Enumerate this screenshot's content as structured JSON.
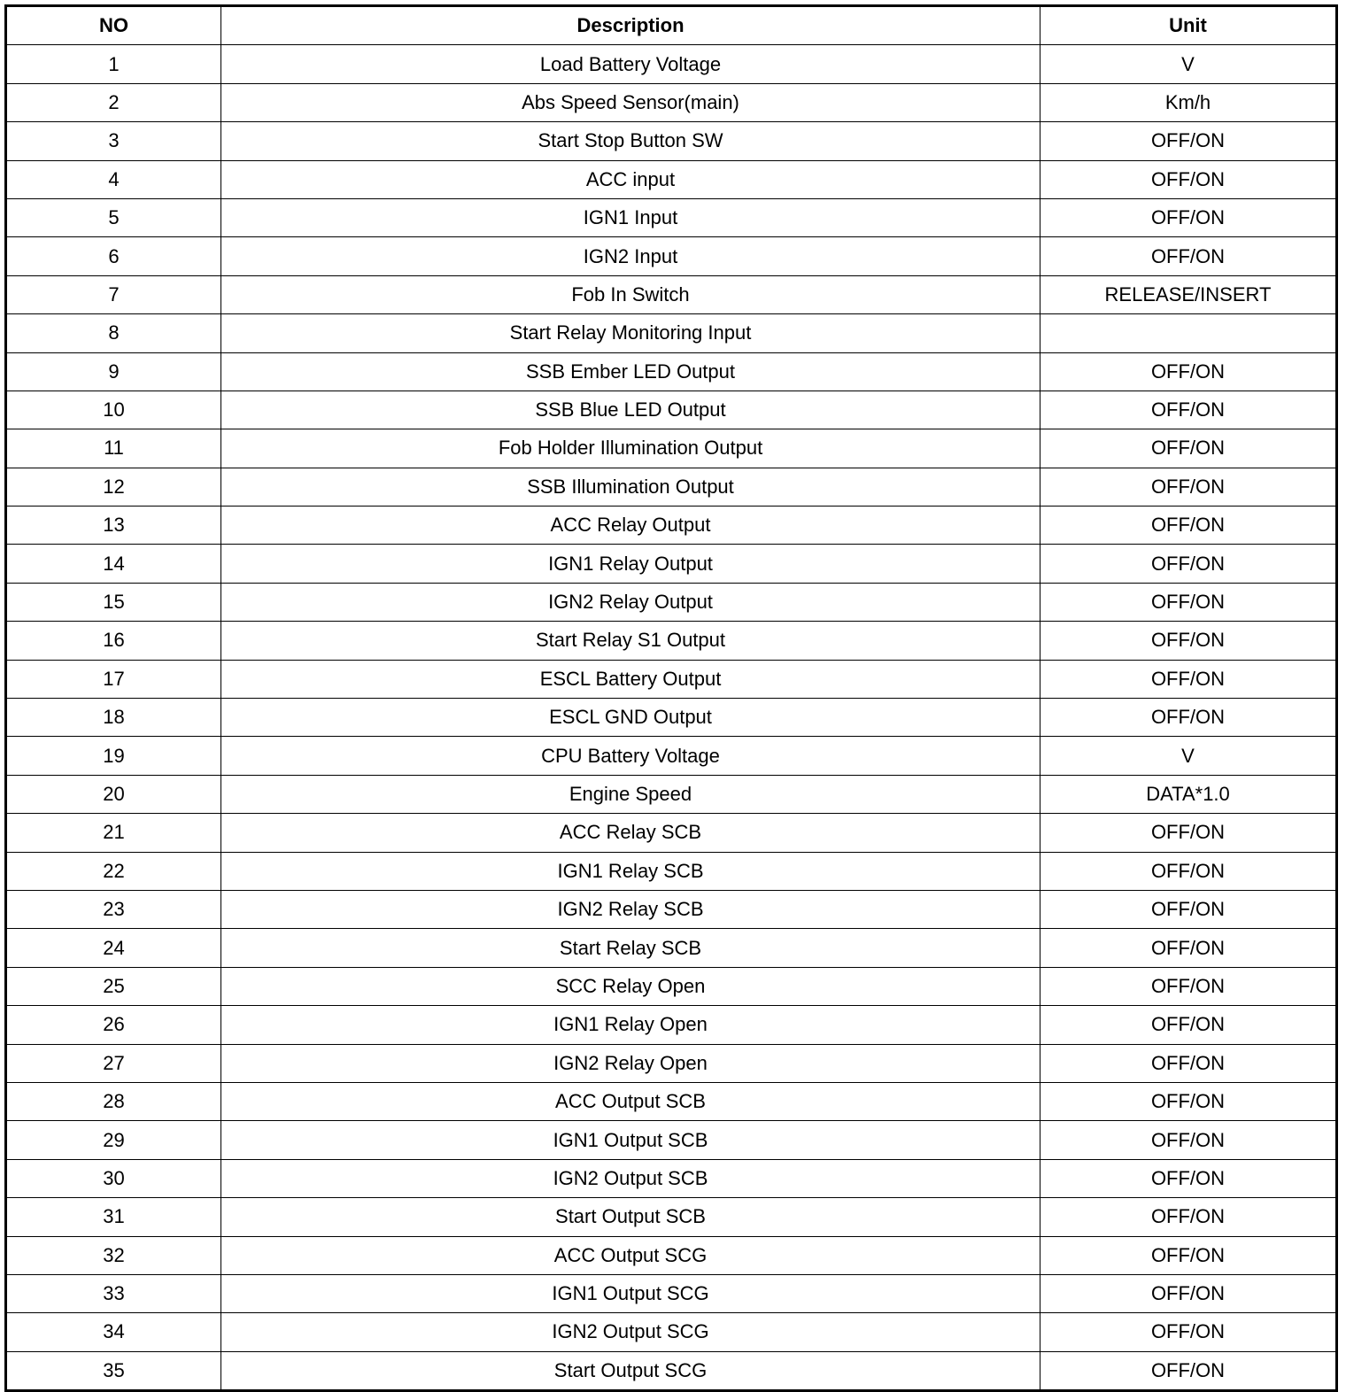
{
  "table": {
    "headers": [
      "NO",
      "Description",
      "Unit"
    ],
    "rows": [
      [
        "1",
        "Load Battery Voltage",
        "V"
      ],
      [
        "2",
        "Abs Speed Sensor(main)",
        "Km/h"
      ],
      [
        "3",
        "Start Stop Button SW",
        "OFF/ON"
      ],
      [
        "4",
        "ACC input",
        "OFF/ON"
      ],
      [
        "5",
        "IGN1 Input",
        "OFF/ON"
      ],
      [
        "6",
        "IGN2 Input",
        "OFF/ON"
      ],
      [
        "7",
        "Fob In Switch",
        "RELEASE/INSERT"
      ],
      [
        "8",
        "Start Relay Monitoring Input",
        ""
      ],
      [
        "9",
        "SSB Ember LED Output",
        "OFF/ON"
      ],
      [
        "10",
        "SSB Blue LED Output",
        "OFF/ON"
      ],
      [
        "11",
        "Fob Holder Illumination Output",
        "OFF/ON"
      ],
      [
        "12",
        "SSB Illumination Output",
        "OFF/ON"
      ],
      [
        "13",
        "ACC Relay Output",
        "OFF/ON"
      ],
      [
        "14",
        "IGN1 Relay Output",
        "OFF/ON"
      ],
      [
        "15",
        "IGN2 Relay Output",
        "OFF/ON"
      ],
      [
        "16",
        "Start Relay S1 Output",
        "OFF/ON"
      ],
      [
        "17",
        "ESCL Battery Output",
        "OFF/ON"
      ],
      [
        "18",
        "ESCL GND Output",
        "OFF/ON"
      ],
      [
        "19",
        "CPU Battery Voltage",
        "V"
      ],
      [
        "20",
        "Engine Speed",
        "DATA*1.0"
      ],
      [
        "21",
        "ACC Relay SCB",
        "OFF/ON"
      ],
      [
        "22",
        "IGN1 Relay SCB",
        "OFF/ON"
      ],
      [
        "23",
        "IGN2 Relay SCB",
        "OFF/ON"
      ],
      [
        "24",
        "Start Relay SCB",
        "OFF/ON"
      ],
      [
        "25",
        "SCC Relay Open",
        "OFF/ON"
      ],
      [
        "26",
        "IGN1 Relay Open",
        "OFF/ON"
      ],
      [
        "27",
        "IGN2 Relay Open",
        "OFF/ON"
      ],
      [
        "28",
        "ACC Output SCB",
        "OFF/ON"
      ],
      [
        "29",
        "IGN1 Output SCB",
        "OFF/ON"
      ],
      [
        "30",
        "IGN2 Output SCB",
        "OFF/ON"
      ],
      [
        "31",
        "Start Output SCB",
        "OFF/ON"
      ],
      [
        "32",
        "ACC Output SCG",
        "OFF/ON"
      ],
      [
        "33",
        "IGN1 Output SCG",
        "OFF/ON"
      ],
      [
        "34",
        "IGN2 Output SCG",
        "OFF/ON"
      ],
      [
        "35",
        "Start Output SCG",
        "OFF/ON"
      ]
    ]
  }
}
